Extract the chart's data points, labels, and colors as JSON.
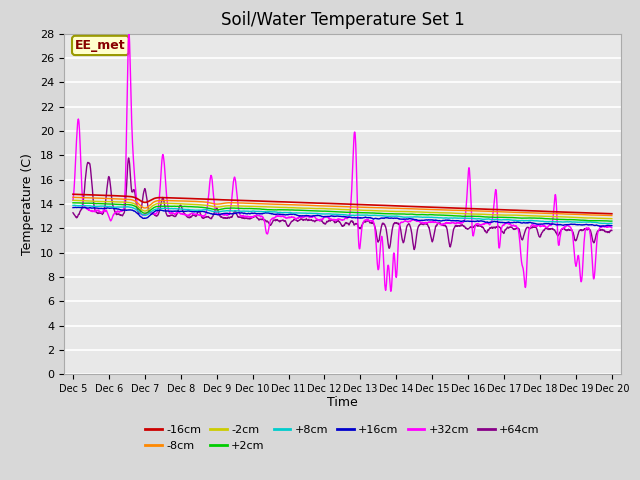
{
  "title": "Soil/Water Temperature Set 1",
  "xlabel": "Time",
  "ylabel": "Temperature (C)",
  "ylim": [
    0,
    28
  ],
  "yticks": [
    0,
    2,
    4,
    6,
    8,
    10,
    12,
    14,
    16,
    18,
    20,
    22,
    24,
    26,
    28
  ],
  "xlim_days": [
    4.75,
    20.25
  ],
  "xtick_positions": [
    5,
    6,
    7,
    8,
    9,
    10,
    11,
    12,
    13,
    14,
    15,
    16,
    17,
    18,
    19,
    20
  ],
  "xtick_labels": [
    "Dec 5",
    "Dec 6",
    "Dec 7",
    "Dec 8",
    "Dec 9",
    "Dec 10",
    "Dec 11",
    "Dec 12",
    "Dec 13",
    "Dec 14",
    "Dec 15",
    "Dec 16",
    "Dec 17",
    "Dec 18",
    "Dec 19",
    "Dec 20"
  ],
  "series": {
    "-16cm": {
      "color": "#cc0000"
    },
    "-8cm": {
      "color": "#ff8800"
    },
    "-2cm": {
      "color": "#cccc00"
    },
    "+2cm": {
      "color": "#00cc00"
    },
    "+8cm": {
      "color": "#00cccc"
    },
    "+16cm": {
      "color": "#0000cc"
    },
    "+32cm": {
      "color": "#ff00ff"
    },
    "+64cm": {
      "color": "#880088"
    }
  },
  "plot_bg": "#e8e8e8",
  "fig_bg": "#d8d8d8",
  "grid_color": "#ffffff",
  "title_fontsize": 12,
  "annotation_text": "EE_met",
  "legend_ncol1": 6,
  "legend_ncol2": 2
}
